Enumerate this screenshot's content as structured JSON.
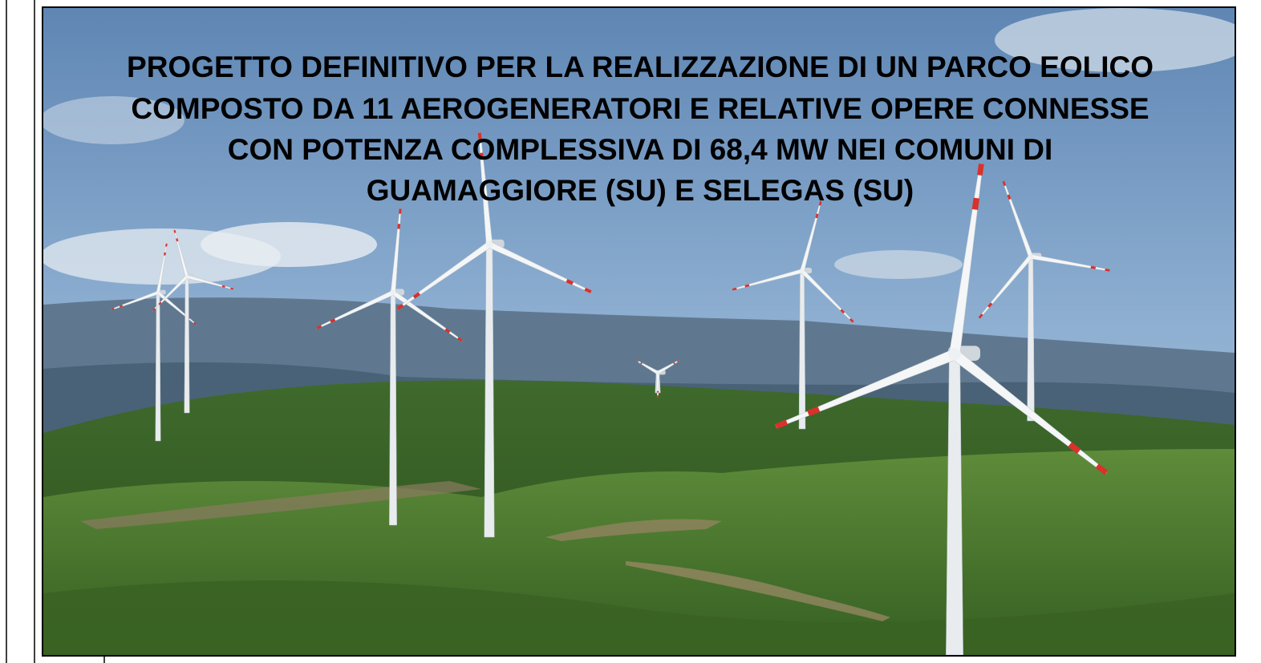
{
  "header": {
    "title_lines": [
      "PROGETTO DEFINITIVO PER LA REALIZZAZIONE DI UN PARCO EOLICO",
      "COMPOSTO DA 11 AEROGENERATORI E RELATIVE OPERE CONNESSE",
      "CON POTENZA COMPLESSIVA DI  68,4 MW NEI COMUNI DI",
      "GUAMAGGIORE (SU) E SELEGAS (SU)"
    ]
  }
}
